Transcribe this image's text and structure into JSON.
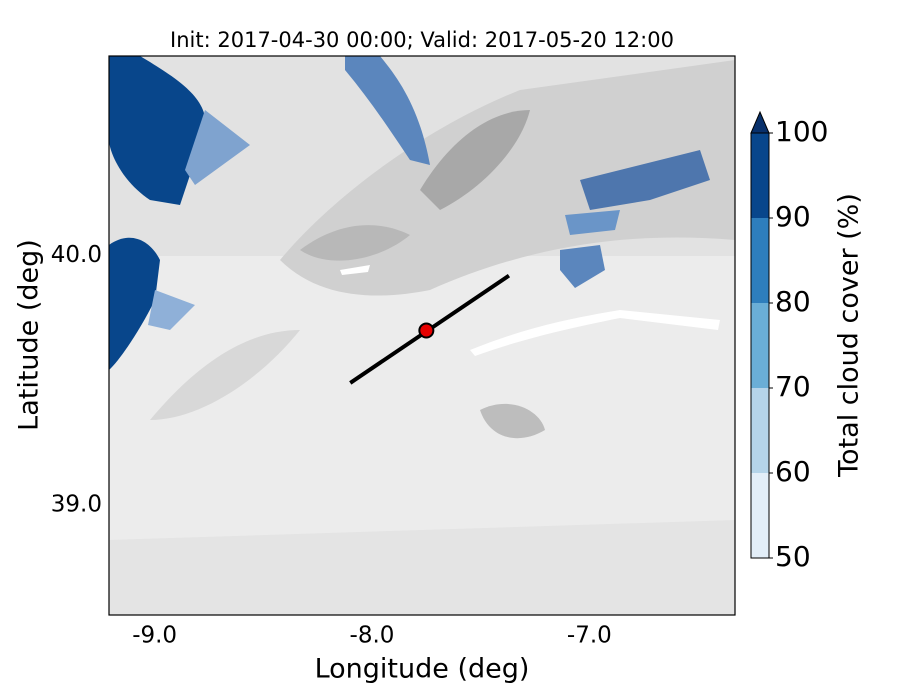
{
  "chart_data": {
    "type": "map",
    "title": "Init: 2017-04-30 00:00; Valid: 2017-05-20 12:00",
    "xlabel": "Longitude (deg)",
    "ylabel": "Latitude (deg)",
    "xlim": [
      -9.21,
      -6.33
    ],
    "ylim": [
      38.56,
      40.8
    ],
    "xticks": [
      {
        "value": -9,
        "label": "-9.0"
      },
      {
        "value": -8,
        "label": "-8.0"
      },
      {
        "value": -7,
        "label": "-7.0"
      }
    ],
    "yticks": [
      {
        "value": 39,
        "label": "39.0"
      },
      {
        "value": 40,
        "label": "40.0"
      }
    ],
    "grid": true,
    "cross_section": {
      "x": [
        -8.1,
        -7.37
      ],
      "y": [
        39.49,
        39.92
      ]
    },
    "point": {
      "x": -7.75,
      "y": 39.7,
      "color": "#e60000"
    },
    "colorbar": {
      "label": "Total cloud cover (%)",
      "lim": [
        50,
        100
      ],
      "ticks": [
        50,
        60,
        70,
        80,
        90,
        100
      ],
      "colors": [
        "#e3eef8",
        "#b5d4e9",
        "#6aaed6",
        "#2e7ebc",
        "#08468b"
      ],
      "extend_color": "#08306b"
    }
  }
}
